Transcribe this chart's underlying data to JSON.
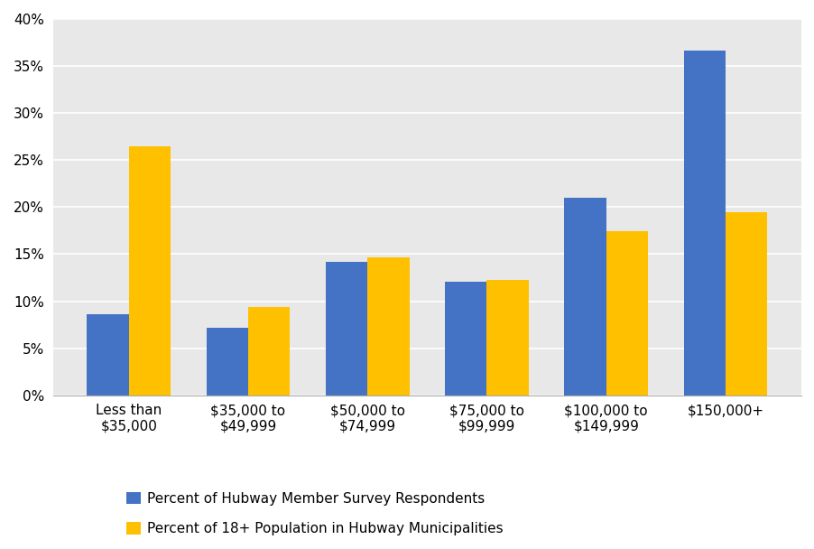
{
  "categories": [
    "Less than\n$35,000",
    "$35,000 to\n$49,999",
    "$50,000 to\n$74,999",
    "$75,000 to\n$99,999",
    "$100,000 to\n$149,999",
    "$150,000+"
  ],
  "respondents": [
    0.086,
    0.072,
    0.142,
    0.121,
    0.21,
    0.366
  ],
  "population": [
    0.265,
    0.094,
    0.147,
    0.123,
    0.174,
    0.195
  ],
  "respondents_color": "#4472C4",
  "population_color": "#FFC000",
  "legend_respondents": "Percent of Hubway Member Survey Respondents",
  "legend_population": "Percent of 18+ Population in Hubway Municipalities",
  "ylim": [
    0,
    0.4
  ],
  "yticks": [
    0.0,
    0.05,
    0.1,
    0.15,
    0.2,
    0.25,
    0.3,
    0.35,
    0.4
  ],
  "plot_bg_color": "#E8E8E8",
  "fig_bg_color": "#FFFFFF",
  "bar_width": 0.35,
  "legend_fontsize": 11,
  "tick_fontsize": 11,
  "grid_color": "#FFFFFF",
  "spine_color": "#AAAAAA"
}
